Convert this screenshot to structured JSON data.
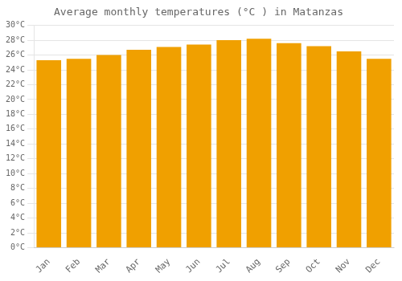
{
  "chart_data": {
    "type": "bar",
    "title": "Average monthly temperatures (°C ) in Matanzas",
    "categories": [
      "Jan",
      "Feb",
      "Mar",
      "Apr",
      "May",
      "Jun",
      "Jul",
      "Aug",
      "Sep",
      "Oct",
      "Nov",
      "Dec"
    ],
    "values": [
      25.3,
      25.5,
      26.0,
      26.7,
      27.1,
      27.4,
      28.0,
      28.2,
      27.6,
      27.2,
      26.5,
      25.5
    ],
    "color": "#F0A000",
    "ylim": [
      0,
      30
    ],
    "yticks": [
      {
        "value": 0,
        "label": "0°C"
      },
      {
        "value": 2,
        "label": "2°C"
      },
      {
        "value": 4,
        "label": "4°C"
      },
      {
        "value": 6,
        "label": "6°C"
      },
      {
        "value": 8,
        "label": "8°C"
      },
      {
        "value": 10,
        "label": "10°C"
      },
      {
        "value": 12,
        "label": "12°C"
      },
      {
        "value": 14,
        "label": "14°C"
      },
      {
        "value": 16,
        "label": "16°C"
      },
      {
        "value": 18,
        "label": "18°C"
      },
      {
        "value": 20,
        "label": "20°C"
      },
      {
        "value": 22,
        "label": "22°C"
      },
      {
        "value": 24,
        "label": "24°C"
      },
      {
        "value": 26,
        "label": "26°C"
      },
      {
        "value": 28,
        "label": "28°C"
      },
      {
        "value": 30,
        "label": "30°C"
      }
    ],
    "grid": true
  }
}
